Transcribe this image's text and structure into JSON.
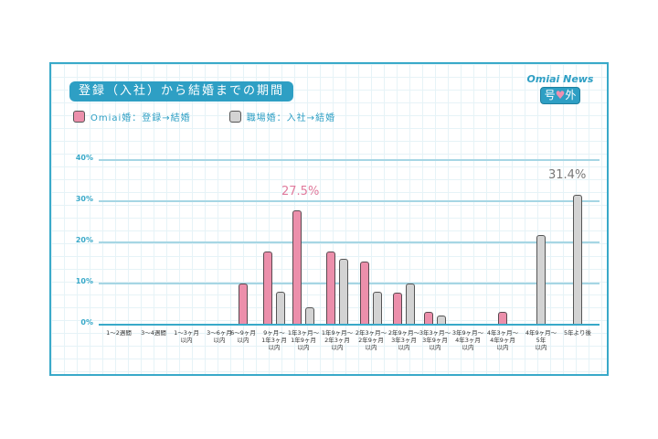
{
  "header": {
    "title": "登録（入社）から結婚までの期間",
    "brand_name": "Omiai News",
    "brand_badge_left": "号",
    "brand_badge_heart": "♥",
    "brand_badge_right": "外"
  },
  "legend": {
    "series_a": "Omiai婚：登録→結婚",
    "series_b": "職場婚：入社→結婚"
  },
  "colors": {
    "accent": "#2e9fc4",
    "pink": "#ec8fab",
    "gray": "#d3d3d3"
  },
  "chart_data": {
    "type": "bar",
    "title": "登録（入社）から結婚までの期間",
    "xlabel": "",
    "ylabel": "",
    "ylim": [
      0,
      40
    ],
    "yticks": [
      "0%",
      "10%",
      "20%",
      "30%",
      "40%"
    ],
    "grid": true,
    "legend_position": "top-left",
    "categories": [
      "1〜2週間",
      "3〜4週間",
      "1〜3ヶ月以内",
      "3〜6ヶ月以内",
      "6〜9ヶ月以内",
      "9ヶ月〜1年3ヶ月以内",
      "1年3ヶ月〜1年9ヶ月以内",
      "1年9ヶ月〜2年3ヶ月以内",
      "2年3ヶ月〜2年9ヶ月以内",
      "2年9ヶ月〜3年3ヶ月以内",
      "3年3ヶ月〜3年9ヶ月以内",
      "3年9ヶ月〜4年3ヶ月以内",
      "4年3ヶ月〜4年9ヶ月以内",
      "4年9ヶ月〜5年以内",
      "5年より後"
    ],
    "category_labels": [
      "1〜2週間",
      "3〜4週間",
      "1〜3ヶ月\n以内",
      "3〜6ヶ月\n以内",
      "6〜9ヶ月\n以内",
      "9ヶ月〜\n1年3ヶ月\n以内",
      "1年3ヶ月〜\n1年9ヶ月\n以内",
      "1年9ヶ月〜\n2年3ヶ月\n以内",
      "2年3ヶ月〜\n2年9ヶ月\n以内",
      "2年9ヶ月〜\n3年3ヶ月\n以内",
      "3年3ヶ月〜\n3年9ヶ月\n以内",
      "3年9ヶ月〜\n4年3ヶ月\n以内",
      "4年3ヶ月〜\n4年9ヶ月\n以内",
      "4年9ヶ月〜\n5年\n以内",
      "5年より後"
    ],
    "series": [
      {
        "name": "Omiai婚：登録→結婚",
        "color": "#ec8fab",
        "values": [
          0,
          0,
          0,
          0,
          9.8,
          17.6,
          27.5,
          17.6,
          15.2,
          7.6,
          2.8,
          0,
          2.8,
          0,
          0
        ]
      },
      {
        "name": "職場婚：入社→結婚",
        "color": "#d3d3d3",
        "values": [
          0,
          0,
          0,
          0,
          0,
          7.8,
          4.0,
          15.8,
          7.8,
          9.8,
          2.0,
          0,
          0,
          21.6,
          31.4
        ]
      }
    ],
    "annotations": [
      {
        "text": "27.5%",
        "series": "Omiai婚：登録→結婚",
        "category": "1年3ヶ月〜1年9ヶ月以内"
      },
      {
        "text": "31.4%",
        "series": "職場婚：入社→結婚",
        "category": "5年より後"
      }
    ]
  }
}
